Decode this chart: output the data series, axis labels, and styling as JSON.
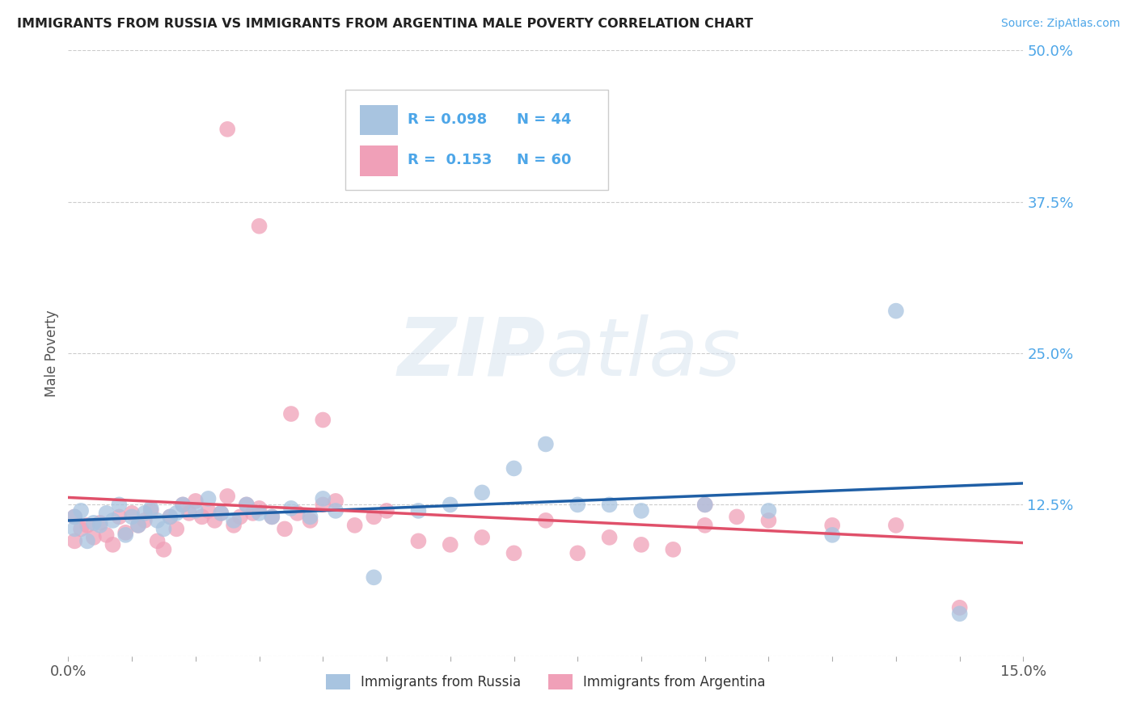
{
  "title": "IMMIGRANTS FROM RUSSIA VS IMMIGRANTS FROM ARGENTINA MALE POVERTY CORRELATION CHART",
  "source_text": "Source: ZipAtlas.com",
  "ylabel": "Male Poverty",
  "xlim": [
    0.0,
    0.15
  ],
  "ylim": [
    0.0,
    0.5
  ],
  "ytick_values": [
    0.0,
    0.125,
    0.25,
    0.375,
    0.5
  ],
  "ytick_labels": [
    "",
    "12.5%",
    "25.0%",
    "37.5%",
    "50.0%"
  ],
  "russia_color": "#a8c4e0",
  "russia_line_color": "#1f5fa6",
  "argentina_color": "#f0a0b8",
  "argentina_line_color": "#e0506a",
  "legend_R_russia": "R = 0.098",
  "legend_N_russia": "N = 44",
  "legend_R_argentina": "R =  0.153",
  "legend_N_argentina": "N = 60",
  "background_color": "#ffffff",
  "russia_x": [
    0.001,
    0.001,
    0.002,
    0.003,
    0.004,
    0.005,
    0.006,
    0.007,
    0.008,
    0.009,
    0.01,
    0.011,
    0.012,
    0.013,
    0.014,
    0.015,
    0.016,
    0.017,
    0.018,
    0.02,
    0.022,
    0.024,
    0.026,
    0.028,
    0.03,
    0.032,
    0.035,
    0.038,
    0.04,
    0.042,
    0.048,
    0.055,
    0.06,
    0.065,
    0.07,
    0.075,
    0.08,
    0.085,
    0.09,
    0.1,
    0.11,
    0.12,
    0.13,
    0.14
  ],
  "russia_y": [
    0.115,
    0.105,
    0.12,
    0.095,
    0.11,
    0.108,
    0.118,
    0.112,
    0.125,
    0.1,
    0.115,
    0.108,
    0.118,
    0.122,
    0.112,
    0.105,
    0.115,
    0.118,
    0.125,
    0.12,
    0.13,
    0.118,
    0.112,
    0.125,
    0.118,
    0.115,
    0.122,
    0.115,
    0.13,
    0.12,
    0.065,
    0.12,
    0.125,
    0.135,
    0.155,
    0.175,
    0.125,
    0.125,
    0.12,
    0.125,
    0.12,
    0.1,
    0.285,
    0.035
  ],
  "argentina_x": [
    0.001,
    0.001,
    0.002,
    0.003,
    0.004,
    0.005,
    0.006,
    0.007,
    0.008,
    0.009,
    0.01,
    0.011,
    0.012,
    0.013,
    0.014,
    0.015,
    0.016,
    0.017,
    0.018,
    0.019,
    0.02,
    0.021,
    0.022,
    0.023,
    0.024,
    0.025,
    0.026,
    0.027,
    0.028,
    0.029,
    0.03,
    0.032,
    0.034,
    0.036,
    0.038,
    0.04,
    0.042,
    0.045,
    0.048,
    0.05,
    0.055,
    0.06,
    0.065,
    0.07,
    0.075,
    0.08,
    0.085,
    0.09,
    0.095,
    0.1,
    0.1,
    0.105,
    0.11,
    0.12,
    0.13,
    0.14,
    0.025,
    0.03,
    0.035,
    0.04
  ],
  "argentina_y": [
    0.115,
    0.095,
    0.105,
    0.108,
    0.098,
    0.11,
    0.1,
    0.092,
    0.115,
    0.102,
    0.118,
    0.108,
    0.112,
    0.12,
    0.095,
    0.088,
    0.115,
    0.105,
    0.125,
    0.118,
    0.128,
    0.115,
    0.12,
    0.112,
    0.118,
    0.132,
    0.108,
    0.115,
    0.125,
    0.118,
    0.122,
    0.115,
    0.105,
    0.118,
    0.112,
    0.125,
    0.128,
    0.108,
    0.115,
    0.12,
    0.095,
    0.092,
    0.098,
    0.085,
    0.112,
    0.085,
    0.098,
    0.092,
    0.088,
    0.108,
    0.125,
    0.115,
    0.112,
    0.108,
    0.108,
    0.04,
    0.435,
    0.355,
    0.2,
    0.195
  ]
}
